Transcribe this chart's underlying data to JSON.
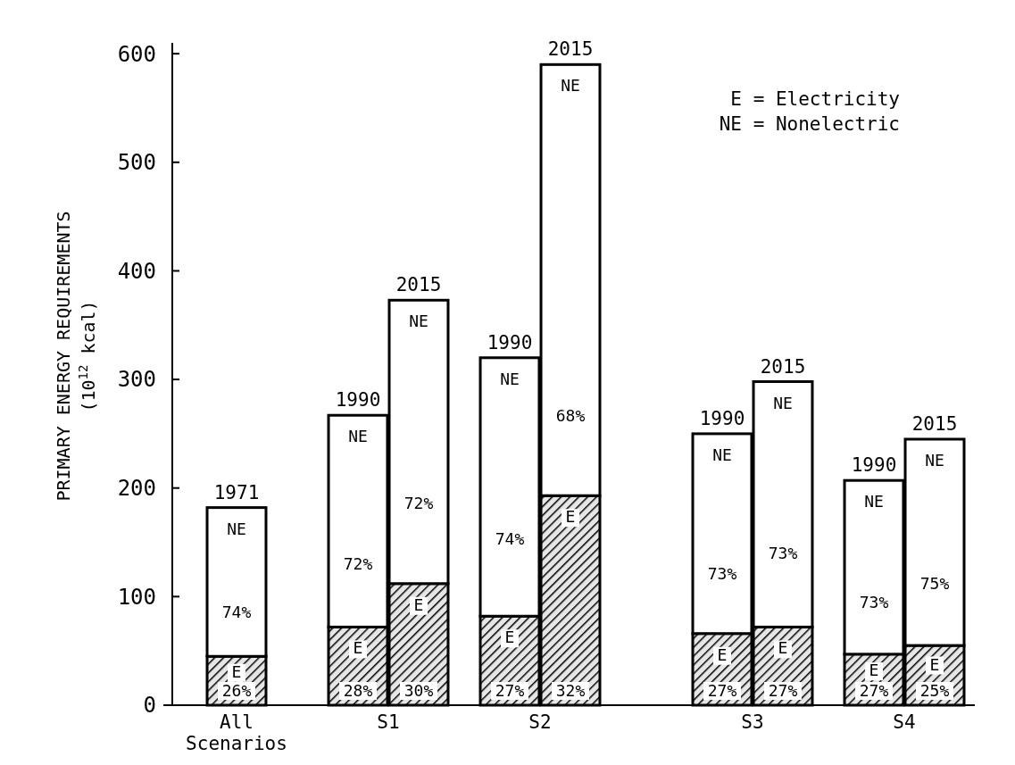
{
  "chart_data": {
    "type": "bar",
    "stacked": true,
    "ylabel": "PRIMARY ENERGY REQUIREMENTS (10$^{12}$ kcal)",
    "categories": [
      "All Scenarios",
      null,
      null,
      null,
      null,
      "S1",
      null,
      null,
      null,
      null,
      "S2",
      null,
      null,
      null,
      null,
      null,
      null,
      "S3",
      null,
      null,
      null,
      null,
      "S4",
      null
    ],
    "series": [
      {
        "name": "E",
        "color": "#000000",
        "values": [
          45,
          null,
          null,
          null,
          72,
          null,
          112,
          null,
          null,
          82,
          null,
          193,
          null,
          null,
          null,
          null,
          66,
          null,
          72,
          null,
          null,
          47,
          null,
          55
        ]
      },
      {
        "name": "NE",
        "color": "#ffffff",
        "values": [
          137,
          null,
          null,
          null,
          195,
          null,
          261,
          null,
          null,
          238,
          null,
          397,
          null,
          null,
          null,
          null,
          184,
          null,
          226,
          null,
          null,
          160,
          null,
          190
        ]
      }
    ],
    "ylim": [
      0,
      610
    ],
    "yticks": [
      0,
      100,
      200,
      300,
      400,
      500,
      600
    ],
    "grid": false,
    "legend": false,
    "annotations": [
      "E = Electricity",
      "NE = Nonelectric",
      "1971",
      "1990",
      "2015",
      "1990",
      "2015",
      "1990",
      "2015",
      "1990",
      "2015",
      "26%",
      "28%",
      "30%",
      "27%",
      "32%",
      "27%",
      "27%",
      "27%",
      "25%",
      "74%",
      "72%",
      "72%",
      "74%",
      "68%",
      "73%",
      "73%",
      "73%",
      "75%"
    ]
  }
}
